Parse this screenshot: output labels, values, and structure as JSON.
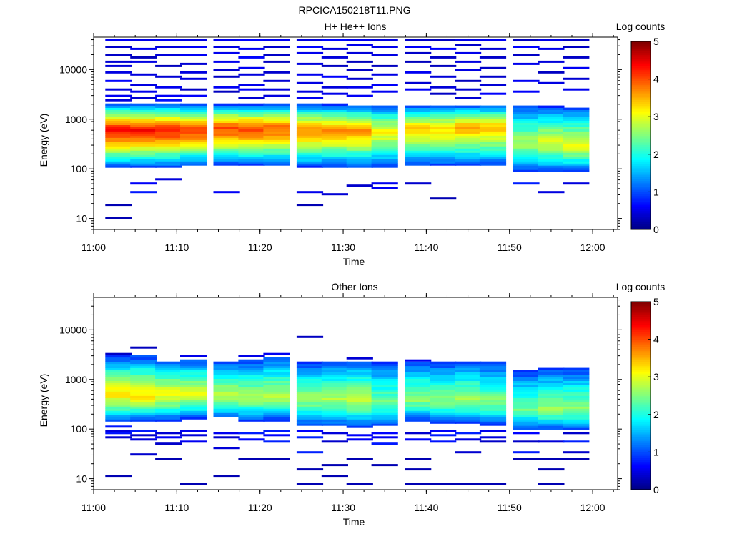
{
  "figure_title": "RPCICA150218T11.PNG",
  "chart_data": [
    {
      "type": "heatmap",
      "title": "H+ He++ Ions",
      "xlabel": "Time",
      "ylabel": "Energy (eV)",
      "y_scale": "log",
      "ylim": [
        6,
        45000
      ],
      "xlim": [
        "11:00",
        "12:03"
      ],
      "x_ticks": [
        "11:00",
        "11:10",
        "11:20",
        "11:30",
        "11:40",
        "11:50",
        "12:00"
      ],
      "y_ticks": [
        "10",
        "100",
        "1000",
        "10000"
      ],
      "colorbar": {
        "label": "Log counts",
        "min": 0,
        "max": 5,
        "ticks": [
          "0",
          "1",
          "2",
          "3",
          "4",
          "5"
        ],
        "colormap": "jet"
      },
      "time_bins": [
        "11:03",
        "11:06",
        "11:09",
        "11:12",
        "11:16",
        "11:19",
        "11:22",
        "11:26",
        "11:29",
        "11:32",
        "11:35",
        "11:39",
        "11:42",
        "11:45",
        "11:48",
        "11:52",
        "11:55",
        "11:58"
      ],
      "core_band": {
        "low_eV": [
          110,
          110,
          110,
          120,
          120,
          120,
          120,
          110,
          110,
          110,
          110,
          120,
          120,
          120,
          120,
          90,
          90,
          90
        ],
        "high_eV": [
          2100,
          2100,
          2100,
          2000,
          2000,
          2000,
          2000,
          2000,
          2000,
          1900,
          1900,
          1900,
          1900,
          1900,
          1900,
          1800,
          1800,
          1700
        ],
        "peak_eV": [
          600,
          600,
          600,
          600,
          650,
          650,
          650,
          600,
          600,
          600,
          550,
          650,
          650,
          700,
          700,
          350,
          350,
          300
        ],
        "peak_log_counts": [
          4.3,
          4.3,
          4.2,
          4.1,
          4.0,
          4.0,
          3.9,
          3.7,
          3.6,
          3.7,
          3.1,
          3.3,
          3.3,
          3.5,
          3.4,
          2.7,
          2.9,
          3.0
        ]
      },
      "sparse_hits_eV": [
        [
          10,
          18,
          40000,
          30000,
          20000,
          15000,
          12000,
          9000,
          6000,
          4000,
          3000,
          2500
        ],
        [
          50,
          35,
          40000,
          25000,
          18000,
          14000,
          8000,
          5000,
          3500,
          2600
        ],
        [
          60,
          40000,
          30000,
          20000,
          12000,
          7000,
          4500,
          3000,
          2500
        ],
        [
          40000,
          28000,
          19000,
          13000,
          9000,
          6500,
          4000,
          3000
        ],
        [
          35,
          40000,
          30000,
          22000,
          15000,
          10000,
          7000,
          4500,
          3500
        ],
        [
          40000,
          25000,
          17000,
          11000,
          8000,
          5000,
          3800,
          2800
        ],
        [
          40000,
          30000,
          20000,
          14000,
          9000,
          6000,
          4000,
          3000
        ],
        [
          18,
          35,
          40000,
          30000,
          21000,
          13000,
          8000,
          5500,
          3500,
          2700
        ],
        [
          30,
          40000,
          27000,
          18000,
          12000,
          7500,
          4500,
          3200
        ],
        [
          45,
          40000,
          32000,
          22000,
          15000,
          10000,
          6500,
          4200,
          3000
        ],
        [
          40,
          50,
          40000,
          28000,
          19000,
          12000,
          8000,
          5000,
          3500
        ],
        [
          50,
          40000,
          30000,
          21000,
          14000,
          9000,
          5500,
          3800
        ],
        [
          25,
          40000,
          27000,
          18000,
          12000,
          7000,
          4500,
          3200
        ],
        [
          40000,
          31000,
          22000,
          15000,
          9500,
          6000,
          4000,
          2800
        ],
        [
          40000,
          26000,
          17000,
          11000,
          7500,
          5000,
          3400
        ],
        [
          50,
          40000,
          30000,
          20000,
          13000,
          6000,
          3500
        ],
        [
          35,
          40000,
          25000,
          15000,
          9000,
          5500
        ],
        [
          50,
          40000,
          30000,
          18000,
          11000,
          6500,
          3800
        ]
      ]
    },
    {
      "type": "heatmap",
      "title": "Other Ions",
      "xlabel": "Time",
      "ylabel": "Energy (eV)",
      "y_scale": "log",
      "ylim": [
        6,
        45000
      ],
      "xlim": [
        "11:00",
        "12:03"
      ],
      "x_ticks": [
        "11:00",
        "11:10",
        "11:20",
        "11:30",
        "11:40",
        "11:50",
        "12:00"
      ],
      "y_ticks": [
        "10",
        "100",
        "1000",
        "10000"
      ],
      "colorbar": {
        "label": "Log counts",
        "min": 0,
        "max": 5,
        "ticks": [
          "0",
          "1",
          "2",
          "3",
          "4",
          "5"
        ],
        "colormap": "jet"
      },
      "time_bins": [
        "11:03",
        "11:06",
        "11:09",
        "11:12",
        "11:16",
        "11:19",
        "11:22",
        "11:26",
        "11:29",
        "11:32",
        "11:35",
        "11:39",
        "11:42",
        "11:45",
        "11:48",
        "11:52",
        "11:55",
        "11:58"
      ],
      "core_band": {
        "low_eV": [
          140,
          150,
          150,
          160,
          170,
          150,
          150,
          120,
          120,
          110,
          120,
          150,
          130,
          130,
          120,
          100,
          100,
          100
        ],
        "high_eV": [
          3000,
          3000,
          2400,
          2600,
          2400,
          2500,
          2800,
          2200,
          2300,
          2400,
          2200,
          2300,
          2200,
          2300,
          2200,
          1500,
          1700,
          1700
        ],
        "peak_eV": [
          500,
          450,
          500,
          500,
          450,
          450,
          450,
          400,
          400,
          400,
          350,
          400,
          400,
          400,
          350,
          250,
          250,
          250
        ],
        "peak_log_counts": [
          3.2,
          3.3,
          3.1,
          3.0,
          2.8,
          2.7,
          2.8,
          2.6,
          2.7,
          2.8,
          2.4,
          2.6,
          2.5,
          2.6,
          2.5,
          2.4,
          2.6,
          2.6
        ]
      },
      "sparse_hits_eV": [
        [
          12,
          70,
          80,
          90,
          110,
          3300
        ],
        [
          30,
          60,
          75,
          90,
          4300
        ],
        [
          25,
          50,
          70,
          85
        ],
        [
          8,
          55,
          75,
          90,
          3000
        ],
        [
          12,
          40,
          65,
          85
        ],
        [
          25,
          60,
          80,
          2900
        ],
        [
          25,
          55,
          75,
          90,
          3300
        ],
        [
          8,
          15,
          35,
          70,
          90,
          7000
        ],
        [
          12,
          18,
          55,
          80
        ],
        [
          8,
          25,
          60,
          75,
          2600
        ],
        [
          18,
          50,
          70,
          80
        ],
        [
          8,
          15,
          25,
          60,
          80,
          2400
        ],
        [
          8,
          55,
          75,
          90
        ],
        [
          8,
          35,
          60,
          80
        ],
        [
          8,
          55,
          70,
          90
        ],
        [
          25,
          35,
          55,
          80
        ],
        [
          8,
          15,
          25,
          55
        ],
        [
          25,
          35,
          55,
          80
        ]
      ]
    }
  ]
}
